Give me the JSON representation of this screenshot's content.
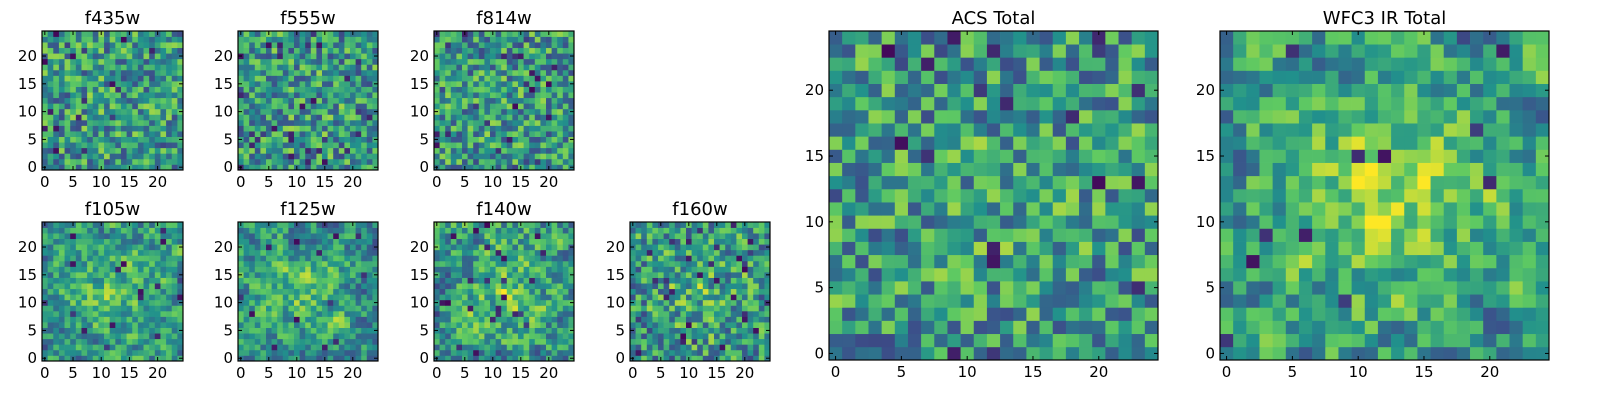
{
  "figure": {
    "description": "Grid of viridis pixel heatmaps of 25x25 noise cutouts",
    "colormap": [
      "#440154",
      "#3b528b",
      "#21918c",
      "#5ec962",
      "#fde725"
    ]
  },
  "chart_data": [
    {
      "type": "heatmap",
      "title": "f435w",
      "grid_size": 25,
      "xlim": [
        0,
        24
      ],
      "ylim": [
        0,
        24
      ],
      "xticks": [
        0,
        5,
        10,
        15,
        20
      ],
      "yticks": [
        0,
        5,
        10,
        15,
        20
      ],
      "seed": 11,
      "smooth": 0,
      "center_boost": 0.03,
      "dark_frac": 0.04
    },
    {
      "type": "heatmap",
      "title": "f555w",
      "grid_size": 25,
      "xlim": [
        0,
        24
      ],
      "ylim": [
        0,
        24
      ],
      "xticks": [
        0,
        5,
        10,
        15,
        20
      ],
      "yticks": [
        0,
        5,
        10,
        15,
        20
      ],
      "seed": 23,
      "smooth": 0,
      "center_boost": 0.03,
      "dark_frac": 0.04
    },
    {
      "type": "heatmap",
      "title": "f814w",
      "grid_size": 25,
      "xlim": [
        0,
        24
      ],
      "ylim": [
        0,
        24
      ],
      "xticks": [
        0,
        5,
        10,
        15,
        20
      ],
      "yticks": [
        0,
        5,
        10,
        15,
        20
      ],
      "seed": 37,
      "smooth": 0,
      "center_boost": 0.03,
      "dark_frac": 0.04
    },
    {
      "type": "heatmap",
      "title": "f105w",
      "grid_size": 25,
      "xlim": [
        0,
        24
      ],
      "ylim": [
        0,
        24
      ],
      "xticks": [
        0,
        5,
        10,
        15,
        20
      ],
      "yticks": [
        0,
        5,
        10,
        15,
        20
      ],
      "seed": 41,
      "smooth": 1,
      "center_boost": 0.22,
      "dark_frac": 0.02
    },
    {
      "type": "heatmap",
      "title": "f125w",
      "grid_size": 25,
      "xlim": [
        0,
        24
      ],
      "ylim": [
        0,
        24
      ],
      "xticks": [
        0,
        5,
        10,
        15,
        20
      ],
      "yticks": [
        0,
        5,
        10,
        15,
        20
      ],
      "seed": 53,
      "smooth": 1,
      "center_boost": 0.18,
      "dark_frac": 0.03
    },
    {
      "type": "heatmap",
      "title": "f140w",
      "grid_size": 25,
      "xlim": [
        0,
        24
      ],
      "ylim": [
        0,
        24
      ],
      "xticks": [
        0,
        5,
        10,
        15,
        20
      ],
      "yticks": [
        0,
        5,
        10,
        15,
        20
      ],
      "seed": 67,
      "smooth": 1,
      "center_boost": 0.18,
      "dark_frac": 0.03
    },
    {
      "type": "heatmap",
      "title": "f160w",
      "grid_size": 25,
      "xlim": [
        0,
        24
      ],
      "ylim": [
        0,
        24
      ],
      "xticks": [
        0,
        5,
        10,
        15,
        20
      ],
      "yticks": [
        0,
        5,
        10,
        15,
        20
      ],
      "seed": 79,
      "smooth": 0,
      "center_boost": 0.12,
      "dark_frac": 0.06
    },
    {
      "type": "heatmap",
      "title": "ACS Total",
      "grid_size": 25,
      "xlim": [
        0,
        24
      ],
      "ylim": [
        0,
        24
      ],
      "xticks": [
        0,
        5,
        10,
        15,
        20
      ],
      "yticks": [
        0,
        5,
        10,
        15,
        20
      ],
      "seed": 97,
      "smooth": 0,
      "center_boost": 0.05,
      "dark_frac": 0.035
    },
    {
      "type": "heatmap",
      "title": "WFC3 IR Total",
      "grid_size": 25,
      "xlim": [
        0,
        24
      ],
      "ylim": [
        0,
        24
      ],
      "xticks": [
        0,
        5,
        10,
        15,
        20
      ],
      "yticks": [
        0,
        5,
        10,
        15,
        20
      ],
      "seed": 113,
      "smooth": 1,
      "center_boost": 0.3,
      "dark_frac": 0.02
    }
  ]
}
